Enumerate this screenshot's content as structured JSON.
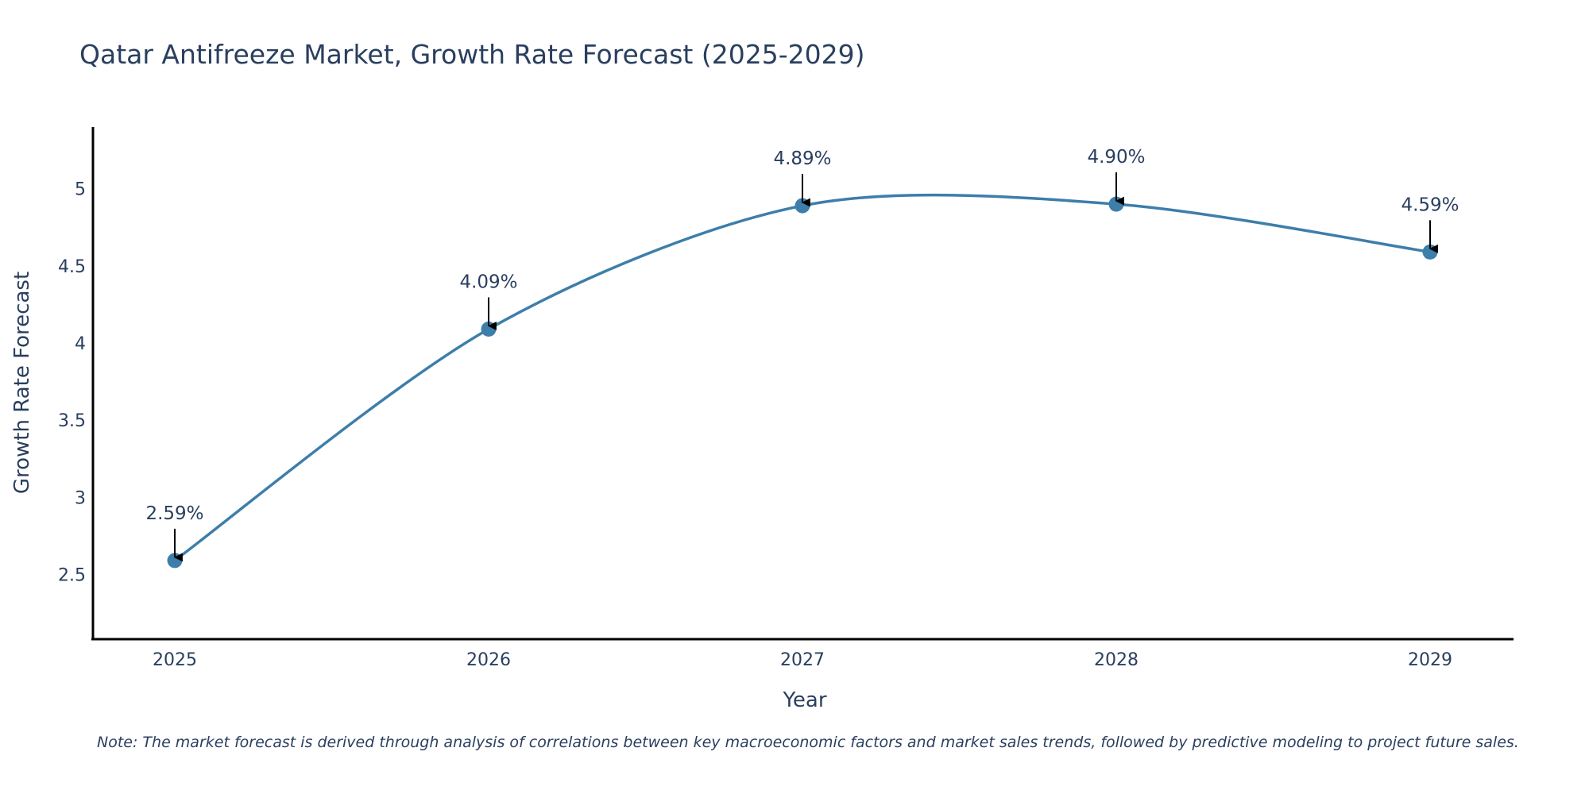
{
  "chart_data": {
    "type": "line",
    "title": "Qatar Antifreeze Market, Growth Rate Forecast (2025-2029)",
    "xlabel": "Year",
    "ylabel": "Growth Rate Forecast",
    "categories": [
      "2025",
      "2026",
      "2027",
      "2028",
      "2029"
    ],
    "series": [
      {
        "name": "Growth Rate Forecast",
        "values": [
          2.59,
          4.09,
          4.89,
          4.9,
          4.59
        ],
        "labels": [
          "2.59%",
          "4.09%",
          "4.89%",
          "4.90%",
          "4.59%"
        ]
      }
    ],
    "yticks": [
      "2.5",
      "3",
      "3.5",
      "4",
      "4.5",
      "5"
    ],
    "ylim": [
      2.08,
      5.4
    ],
    "grid": false,
    "line_color": "#3d7eaa",
    "marker_color": "#3d7eaa",
    "note": "Note: The market forecast is derived through analysis of correlations between key macroeconomic factors and market sales trends, followed by predictive modeling to project future sales."
  }
}
